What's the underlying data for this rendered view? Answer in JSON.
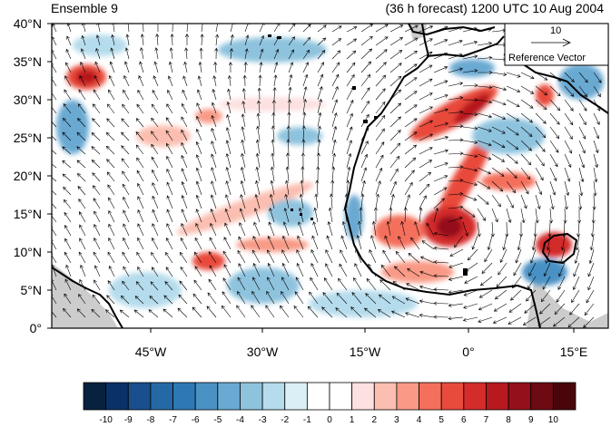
{
  "header": {
    "left_title": "Ensemble 9",
    "right_title": "(36 h forecast) 1200 UTC 10 Aug 2004"
  },
  "reference_vector": {
    "magnitude": "10",
    "label": "Reference Vector"
  },
  "axes": {
    "lat_labels": [
      "40°N",
      "35°N",
      "30°N",
      "25°N",
      "20°N",
      "15°N",
      "10°N",
      "5°N",
      "0°"
    ],
    "lon_labels": [
      "45°W",
      "30°W",
      "15°W",
      "0°",
      "15°E"
    ]
  },
  "colorbar": {
    "labels": [
      "-10",
      "-9",
      "-8",
      "-7",
      "-6",
      "-5",
      "-4",
      "-3",
      "-2",
      "-1",
      "0",
      "1",
      "2",
      "3",
      "4",
      "5",
      "6",
      "7",
      "8",
      "9",
      "10"
    ],
    "colors": [
      "#08213e",
      "#0b3168",
      "#184f8c",
      "#2469a6",
      "#2e79b5",
      "#4a91c4",
      "#6aa9d2",
      "#8ec3de",
      "#b5dcec",
      "#dbeff7",
      "#ffffff",
      "#ffffff",
      "#fde0e0",
      "#fbbeb0",
      "#f89a86",
      "#f46f5c",
      "#e84a3b",
      "#d32c2a",
      "#b8191e",
      "#94101a",
      "#6e0a12",
      "#4a050b"
    ]
  },
  "map": {
    "region": "Tropical North Atlantic and West Africa",
    "land_mask_color": "#cccccc",
    "coastline_color": "#000000"
  }
}
